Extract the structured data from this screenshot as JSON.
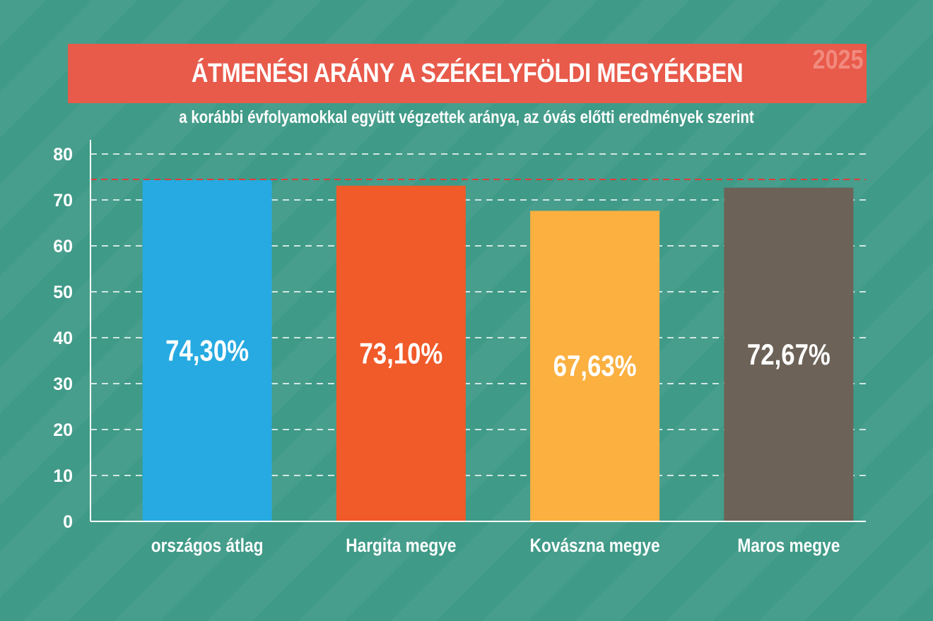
{
  "header": {
    "title": "ÁTMENÉSI ARÁNY A SZÉKELYFÖLDI MEGYÉKBEN",
    "year": "2025",
    "subtitle": "a korábbi évfolyamokkal együtt végzettek aránya, az óvás előtti eredmények szerint"
  },
  "chart_data": {
    "type": "bar",
    "title": "ÁTMENÉSI ARÁNY A SZÉKELYFÖLDI MEGYÉKBEN",
    "subtitle": "a korábbi évfolyamokkal együtt végzettek aránya, az óvás előtti eredmények szerint",
    "categories": [
      "országos átlag",
      "Hargita megye",
      "Kovászna megye",
      "Maros megye"
    ],
    "values": [
      74.3,
      73.1,
      67.63,
      72.67
    ],
    "value_labels": [
      "74,30%",
      "73,10%",
      "67,63%",
      "72,67%"
    ],
    "bar_colors": [
      "#27aae1",
      "#f15a29",
      "#fbb040",
      "#6d6257"
    ],
    "ylim": [
      0,
      80
    ],
    "yticks": [
      0,
      10,
      20,
      30,
      40,
      50,
      60,
      70,
      80
    ],
    "reference_line": {
      "value": 74.3,
      "color": "#e03b3b",
      "style": "dashed"
    },
    "grid": "horizontal-dashed",
    "legend": "none"
  },
  "colors": {
    "background": "#3f9a87",
    "banner": "#e85a4a",
    "text": "#ffffff"
  }
}
